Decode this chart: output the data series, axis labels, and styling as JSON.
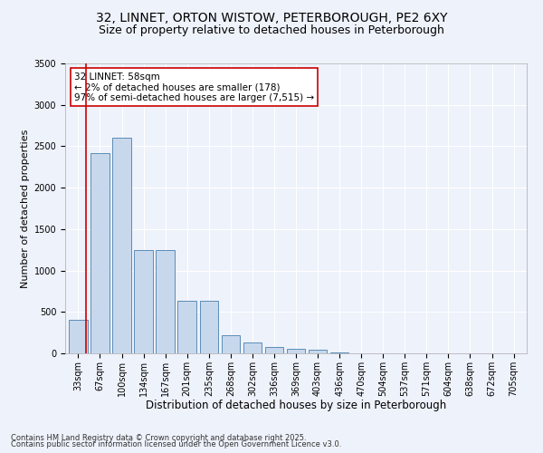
{
  "title1": "32, LINNET, ORTON WISTOW, PETERBOROUGH, PE2 6XY",
  "title2": "Size of property relative to detached houses in Peterborough",
  "xlabel": "Distribution of detached houses by size in Peterborough",
  "ylabel": "Number of detached properties",
  "categories": [
    "33sqm",
    "67sqm",
    "100sqm",
    "134sqm",
    "167sqm",
    "201sqm",
    "235sqm",
    "268sqm",
    "302sqm",
    "336sqm",
    "369sqm",
    "403sqm",
    "436sqm",
    "470sqm",
    "504sqm",
    "537sqm",
    "571sqm",
    "604sqm",
    "638sqm",
    "672sqm",
    "705sqm"
  ],
  "values": [
    400,
    2420,
    2600,
    1250,
    1250,
    630,
    630,
    220,
    130,
    80,
    55,
    40,
    10,
    5,
    3,
    2,
    1,
    1,
    0,
    0,
    0
  ],
  "bar_color": "#c8d8ec",
  "bar_edge_color": "#5b8db8",
  "marker_color": "#cc0000",
  "annotation_text": "32 LINNET: 58sqm\n← 2% of detached houses are smaller (178)\n97% of semi-detached houses are larger (7,515) →",
  "annotation_box_color": "#ffffff",
  "annotation_box_edge": "#cc0000",
  "ylim": [
    0,
    3500
  ],
  "yticks": [
    0,
    500,
    1000,
    1500,
    2000,
    2500,
    3000,
    3500
  ],
  "background_color": "#eef2fb",
  "grid_color": "#ffffff",
  "footer1": "Contains HM Land Registry data © Crown copyright and database right 2025.",
  "footer2": "Contains public sector information licensed under the Open Government Licence v3.0.",
  "title1_fontsize": 10,
  "title2_fontsize": 9,
  "xlabel_fontsize": 8.5,
  "ylabel_fontsize": 8,
  "tick_fontsize": 7,
  "footer_fontsize": 6,
  "annot_fontsize": 7.5
}
